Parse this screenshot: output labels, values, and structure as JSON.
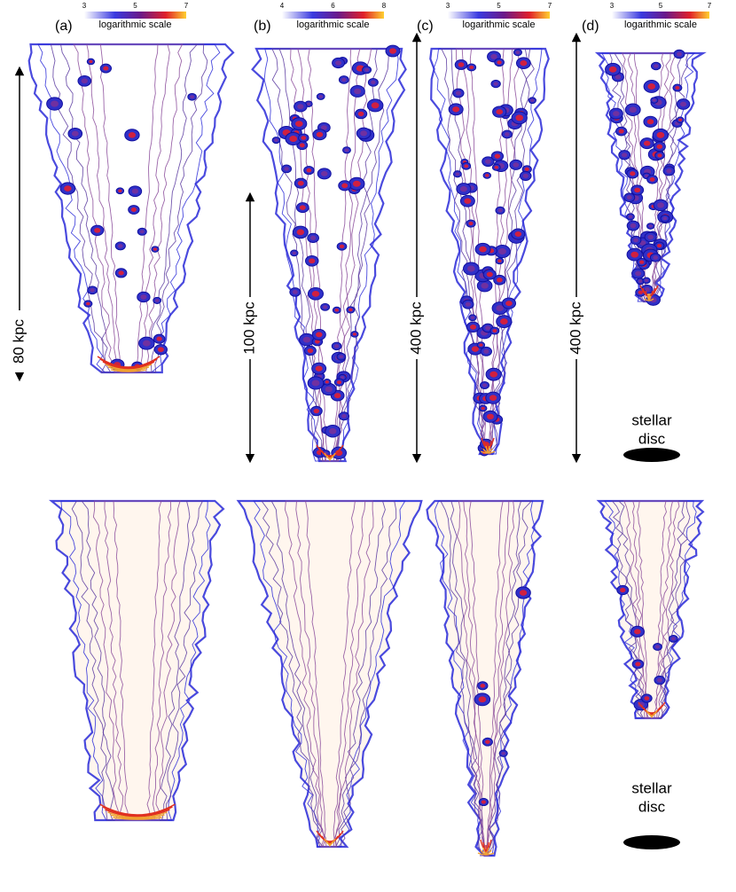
{
  "panels": [
    {
      "label": "(a)",
      "colorbar": {
        "ticks": [
          3,
          5,
          7
        ],
        "label": "logarithmic scale"
      },
      "scale_bar": "80 kpc"
    },
    {
      "label": "(b)",
      "colorbar": {
        "ticks": [
          4,
          6,
          8
        ],
        "label": "logarithmic scale"
      },
      "scale_bar": "100 kpc"
    },
    {
      "label": "(c)",
      "colorbar": {
        "ticks": [
          3,
          5,
          7
        ],
        "label": "logarithmic scale"
      },
      "scale_bar": "400 kpc"
    },
    {
      "label": "(d)",
      "colorbar": {
        "ticks": [
          3,
          5,
          7
        ],
        "label": "logarithmic scale"
      },
      "scale_bar": "400 kpc"
    }
  ],
  "annotations": [
    {
      "lines": [
        "stellar",
        "disc"
      ]
    },
    {
      "lines": [
        "stellar",
        "disc"
      ]
    }
  ]
}
